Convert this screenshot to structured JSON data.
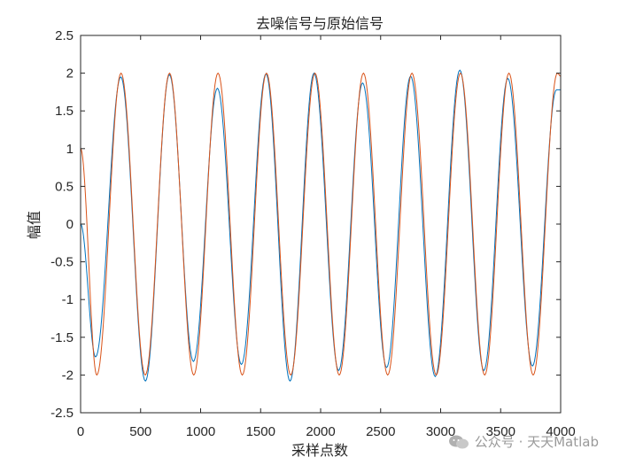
{
  "chart_data": {
    "type": "line",
    "title": "去噪信号与原始信号",
    "xlabel": "采样点数",
    "ylabel": "幅值",
    "xlim": [
      0,
      4000
    ],
    "ylim": [
      -2.5,
      2.5
    ],
    "xticks": [
      0,
      500,
      1000,
      1500,
      2000,
      2500,
      3000,
      3500,
      4000
    ],
    "yticks": [
      2.5,
      2,
      1.5,
      1,
      0.5,
      0,
      -0.5,
      -1,
      -1.5,
      -2,
      -2.5
    ],
    "ytick_labels": [
      "2.5",
      "2",
      "1.5",
      "1",
      "0.5",
      "0",
      "-0.5",
      "-1",
      "-1.5",
      "-2",
      "-2.5"
    ],
    "grid": false,
    "legend": "none",
    "series": [
      {
        "color": "#0072BD",
        "points": [
          [
            0,
            0
          ],
          [
            125,
            -1.76
          ],
          [
            335,
            1.95
          ],
          [
            540,
            -2.08
          ],
          [
            740,
            1.98
          ],
          [
            940,
            -1.82
          ],
          [
            1140,
            1.8
          ],
          [
            1340,
            -1.86
          ],
          [
            1545,
            1.99
          ],
          [
            1745,
            -2.08
          ],
          [
            1945,
            2.0
          ],
          [
            2150,
            -1.94
          ],
          [
            2350,
            1.87
          ],
          [
            2550,
            -1.9
          ],
          [
            2750,
            1.96
          ],
          [
            2955,
            -2.02
          ],
          [
            3160,
            2.04
          ],
          [
            3360,
            -1.94
          ],
          [
            3560,
            1.93
          ],
          [
            3765,
            -1.88
          ],
          [
            3965,
            1.78
          ],
          [
            4000,
            1.78
          ]
        ]
      },
      {
        "color": "#D95319",
        "points": [
          [
            0,
            1.0
          ],
          [
            135,
            -2.0
          ],
          [
            337,
            2.0
          ],
          [
            539,
            -2.0
          ],
          [
            741,
            2.0
          ],
          [
            943,
            -2.0
          ],
          [
            1145,
            2.0
          ],
          [
            1347,
            -2.0
          ],
          [
            1549,
            2.0
          ],
          [
            1751,
            -2.0
          ],
          [
            1953,
            2.0
          ],
          [
            2155,
            -2.0
          ],
          [
            2357,
            2.0
          ],
          [
            2559,
            -2.0
          ],
          [
            2761,
            2.0
          ],
          [
            2963,
            -2.0
          ],
          [
            3165,
            2.0
          ],
          [
            3367,
            -2.0
          ],
          [
            3569,
            2.0
          ],
          [
            3771,
            -2.0
          ],
          [
            3973,
            2.0
          ],
          [
            4000,
            1.96
          ]
        ]
      }
    ]
  },
  "watermark": {
    "text": "公众号 · 天天Matlab",
    "icon": "wechat-icon"
  }
}
